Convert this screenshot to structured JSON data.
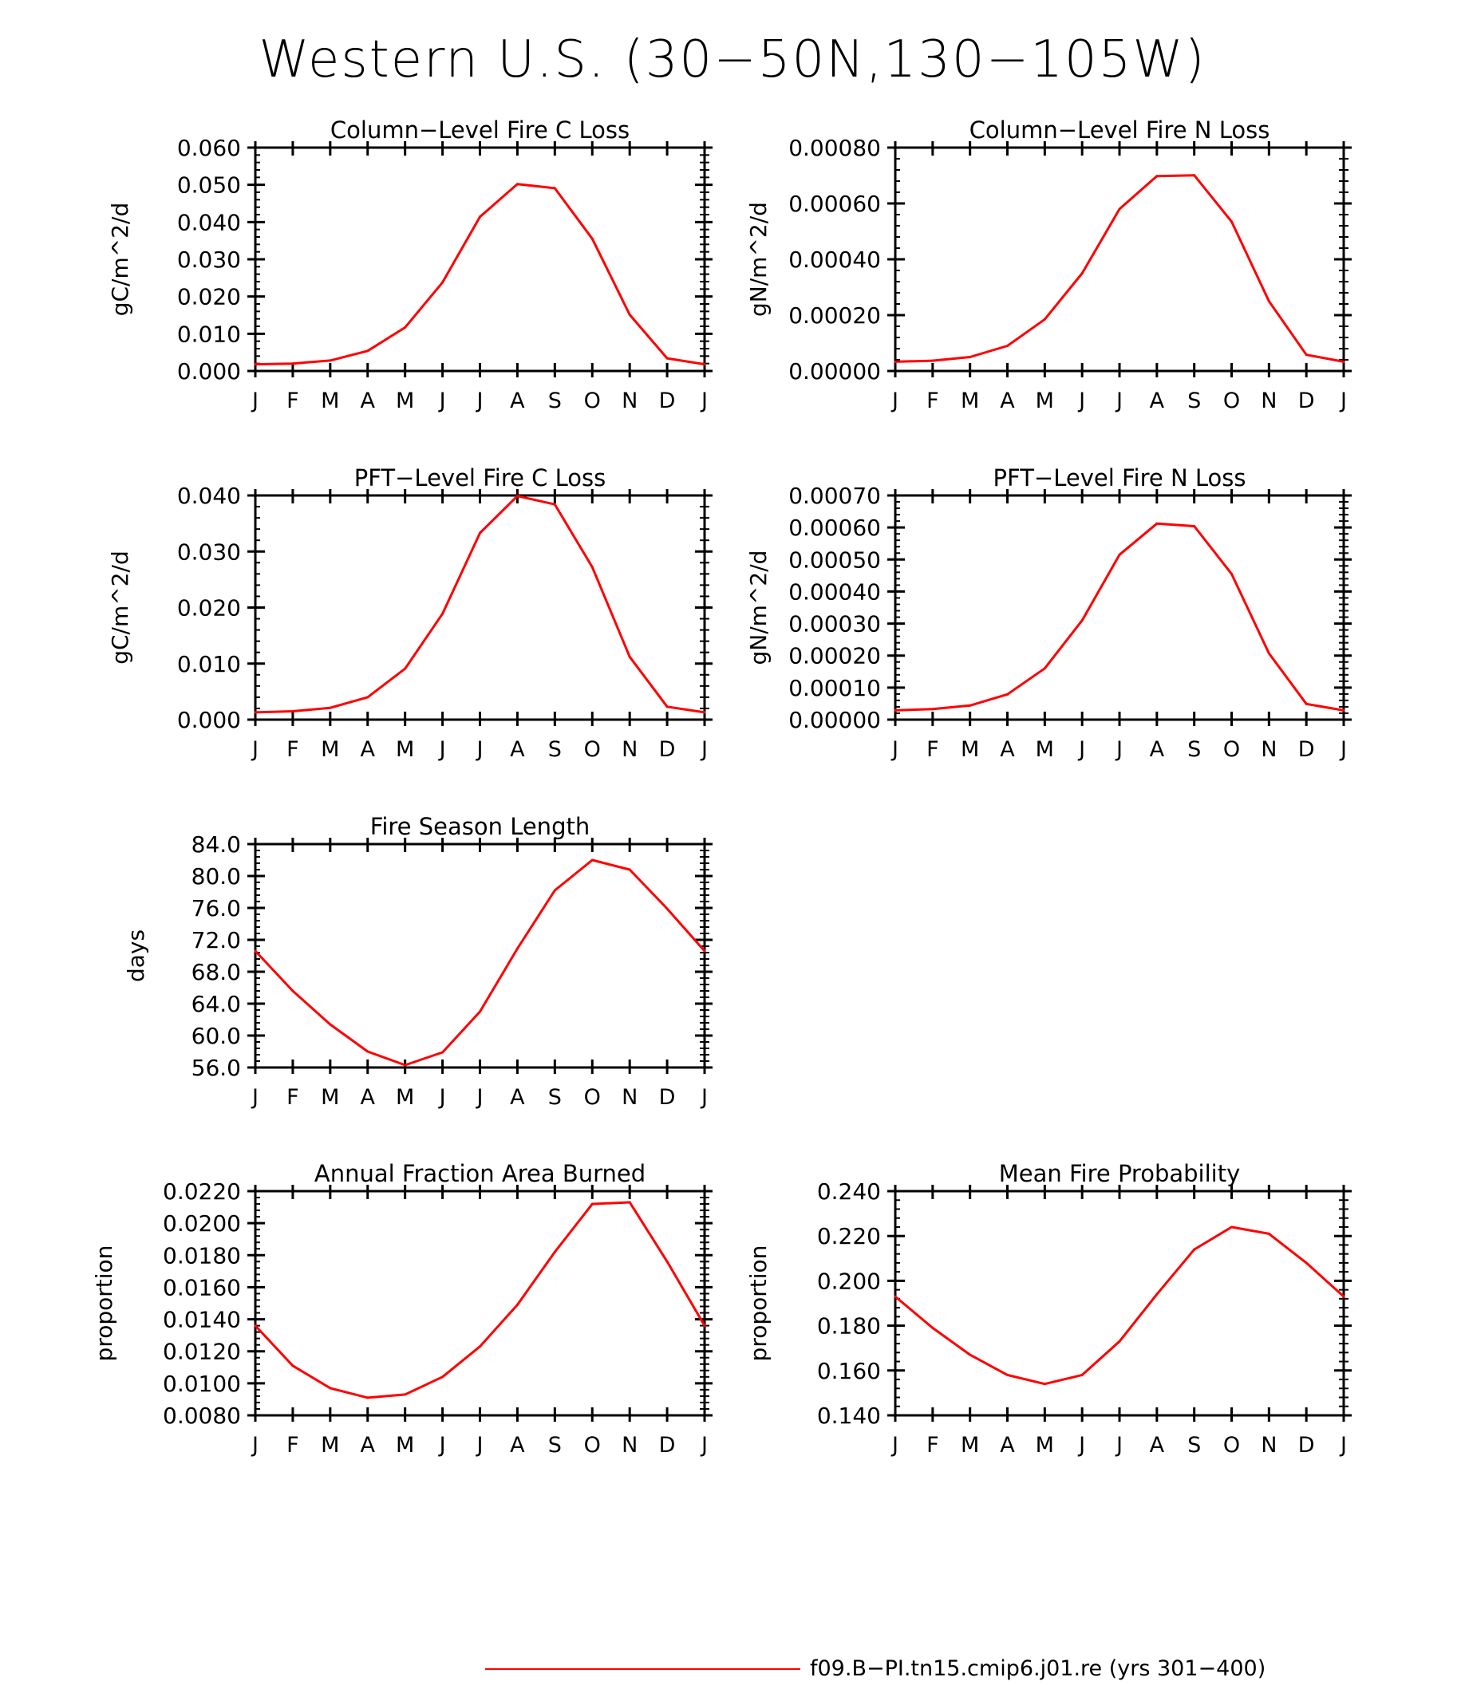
{
  "page_title": "Western U.S. (30−50N,130−105W)",
  "legend": {
    "label": "f09.B−PI.tn15.cmip6.j01.re (yrs 301−400)",
    "color": "#ff0000"
  },
  "chart_data": [
    {
      "type": "line",
      "title": "Column−Level Fire C Loss",
      "ylabel": "gC/m^2/d",
      "categories": [
        "J",
        "F",
        "M",
        "A",
        "M",
        "J",
        "J",
        "A",
        "S",
        "O",
        "N",
        "D",
        "J"
      ],
      "ylim": [
        0,
        0.06
      ],
      "yticks": [
        0,
        0.01,
        0.02,
        0.03,
        0.04,
        0.05,
        0.06
      ],
      "ytick_labels": [
        "0.000",
        "0.010",
        "0.020",
        "0.030",
        "0.040",
        "0.050",
        "0.060"
      ],
      "series": [
        {
          "color": "#ff0000",
          "values": [
            0.0018,
            0.002,
            0.0028,
            0.0054,
            0.0117,
            0.0238,
            0.0414,
            0.0502,
            0.0491,
            0.0355,
            0.0151,
            0.0034,
            0.0018
          ]
        }
      ]
    },
    {
      "type": "line",
      "title": "Column−Level Fire N Loss",
      "ylabel": "gN/m^2/d",
      "categories": [
        "J",
        "F",
        "M",
        "A",
        "M",
        "J",
        "J",
        "A",
        "S",
        "O",
        "N",
        "D",
        "J"
      ],
      "ylim": [
        0,
        0.0008
      ],
      "yticks": [
        0,
        0.0002,
        0.0004,
        0.0006,
        0.0008
      ],
      "ytick_labels": [
        "0.00000",
        "0.00020",
        "0.00040",
        "0.00060",
        "0.00080"
      ],
      "series": [
        {
          "color": "#ff0000",
          "values": [
            3.3e-05,
            3.7e-05,
            5e-05,
            9e-05,
            0.000185,
            0.00035,
            0.00058,
            0.000698,
            0.000701,
            0.000535,
            0.00025,
            5.8e-05,
            3.3e-05
          ]
        }
      ]
    },
    {
      "type": "line",
      "title": "PFT−Level Fire C Loss",
      "ylabel": "gC/m^2/d",
      "categories": [
        "J",
        "F",
        "M",
        "A",
        "M",
        "J",
        "J",
        "A",
        "S",
        "O",
        "N",
        "D",
        "J"
      ],
      "ylim": [
        0,
        0.04
      ],
      "yticks": [
        0,
        0.01,
        0.02,
        0.03,
        0.04
      ],
      "ytick_labels": [
        "0.000",
        "0.010",
        "0.020",
        "0.030",
        "0.040"
      ],
      "series": [
        {
          "color": "#ff0000",
          "values": [
            0.0013,
            0.0015,
            0.0021,
            0.004,
            0.0091,
            0.0189,
            0.0333,
            0.0399,
            0.0384,
            0.0272,
            0.0112,
            0.0023,
            0.0013
          ]
        }
      ]
    },
    {
      "type": "line",
      "title": "PFT−Level Fire N Loss",
      "ylabel": "gN/m^2/d",
      "categories": [
        "J",
        "F",
        "M",
        "A",
        "M",
        "J",
        "J",
        "A",
        "S",
        "O",
        "N",
        "D",
        "J"
      ],
      "ylim": [
        0,
        0.0007
      ],
      "yticks": [
        0,
        0.0001,
        0.0002,
        0.0003,
        0.0004,
        0.0005,
        0.0006,
        0.0007
      ],
      "ytick_labels": [
        "0.00000",
        "0.00010",
        "0.00020",
        "0.00030",
        "0.00040",
        "0.00050",
        "0.00060",
        "0.00070"
      ],
      "series": [
        {
          "color": "#ff0000",
          "values": [
            2.9e-05,
            3.3e-05,
            4.4e-05,
            7.9e-05,
            0.00016,
            0.00031,
            0.000515,
            0.000612,
            0.000604,
            0.000455,
            0.000207,
            4.9e-05,
            2.9e-05
          ]
        }
      ]
    },
    {
      "type": "line",
      "title": "Fire Season Length",
      "ylabel": "days",
      "categories": [
        "J",
        "F",
        "M",
        "A",
        "M",
        "J",
        "J",
        "A",
        "S",
        "O",
        "N",
        "D",
        "J"
      ],
      "ylim": [
        56,
        84
      ],
      "yticks": [
        56,
        60,
        64,
        68,
        72,
        76,
        80,
        84
      ],
      "ytick_labels": [
        "56.0",
        "60.0",
        "64.0",
        "68.0",
        "72.0",
        "76.0",
        "80.0",
        "84.0"
      ],
      "series": [
        {
          "color": "#ff0000",
          "values": [
            70.6,
            65.6,
            61.4,
            58.0,
            56.3,
            57.9,
            63.0,
            70.9,
            78.2,
            82.0,
            80.8,
            75.9,
            70.6
          ]
        }
      ]
    },
    {
      "type": "line",
      "title": "Annual Fraction Area Burned",
      "ylabel": "proportion",
      "categories": [
        "J",
        "F",
        "M",
        "A",
        "M",
        "J",
        "J",
        "A",
        "S",
        "O",
        "N",
        "D",
        "J"
      ],
      "ylim": [
        0.008,
        0.022
      ],
      "yticks": [
        0.008,
        0.01,
        0.012,
        0.014,
        0.016,
        0.018,
        0.02,
        0.022
      ],
      "ytick_labels": [
        "0.0080",
        "0.0100",
        "0.0120",
        "0.0140",
        "0.0160",
        "0.0180",
        "0.0200",
        "0.0220"
      ],
      "series": [
        {
          "color": "#ff0000",
          "values": [
            0.0136,
            0.0111,
            0.0097,
            0.0091,
            0.0093,
            0.0104,
            0.0123,
            0.0149,
            0.0182,
            0.0212,
            0.0213,
            0.0176,
            0.0136
          ]
        }
      ]
    },
    {
      "type": "line",
      "title": "Mean Fire Probability",
      "ylabel": "proportion",
      "categories": [
        "J",
        "F",
        "M",
        "A",
        "M",
        "J",
        "J",
        "A",
        "S",
        "O",
        "N",
        "D",
        "J"
      ],
      "ylim": [
        0.14,
        0.24
      ],
      "yticks": [
        0.14,
        0.16,
        0.18,
        0.2,
        0.22,
        0.24
      ],
      "ytick_labels": [
        "0.140",
        "0.160",
        "0.180",
        "0.200",
        "0.220",
        "0.240"
      ],
      "series": [
        {
          "color": "#ff0000",
          "values": [
            0.193,
            0.179,
            0.167,
            0.158,
            0.154,
            0.158,
            0.173,
            0.194,
            0.214,
            0.224,
            0.221,
            0.208,
            0.193
          ]
        }
      ]
    }
  ]
}
